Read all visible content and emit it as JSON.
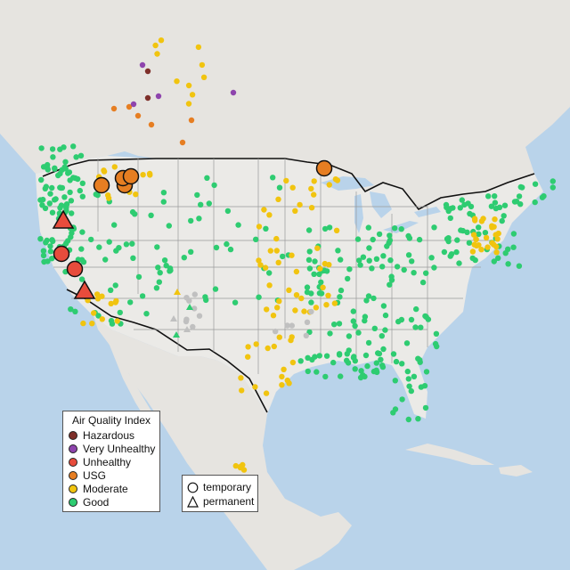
{
  "legend": {
    "title": "Air Quality Index",
    "categories": [
      {
        "label": "Hazardous",
        "color": "#7e2f2a"
      },
      {
        "label": "Very Unhealthy",
        "color": "#8e44ad"
      },
      {
        "label": "Unhealthy",
        "color": "#e74c3c"
      },
      {
        "label": "USG",
        "color": "#e67e22"
      },
      {
        "label": "Moderate",
        "color": "#f1c40f"
      },
      {
        "label": "Good",
        "color": "#2ecc71"
      }
    ]
  },
  "shapes": {
    "temporary": "temporary",
    "permanent": "permanent"
  },
  "colors": {
    "water": "#b9d3ea",
    "land": "#e8e6e2",
    "us_land": "#ebeae7",
    "border": "#111111",
    "state": "#9a9a9a",
    "unknown": "#c0c0c0"
  }
}
